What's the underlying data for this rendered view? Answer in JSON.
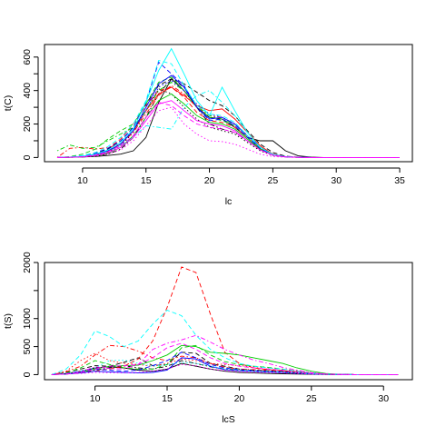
{
  "chart_data": [
    {
      "type": "line",
      "xlabel": "lc",
      "ylabel": "t(C)",
      "xlim": [
        7,
        36
      ],
      "ylim": [
        -25,
        675
      ],
      "xticks": [
        10,
        15,
        20,
        25,
        30,
        35
      ],
      "yticks": [
        0,
        200,
        400,
        600
      ],
      "yticks_minor": [
        100,
        300,
        500
      ],
      "grid": false,
      "legend": "none",
      "x": [
        8,
        9,
        10,
        11,
        12,
        13,
        14,
        15,
        16,
        17,
        18,
        19,
        20,
        21,
        22,
        23,
        24,
        25,
        26,
        27,
        28,
        29,
        30,
        31,
        32,
        33,
        34,
        35
      ],
      "series": [
        {
          "color": "#000000",
          "dash": "solid",
          "values": [
            0,
            1,
            3,
            6,
            12,
            20,
            40,
            120,
            330,
            470,
            400,
            300,
            240,
            230,
            180,
            120,
            100,
            100,
            40,
            10,
            2,
            0,
            0,
            0,
            0,
            0,
            0,
            0
          ]
        },
        {
          "color": "#000000",
          "dash": "dashed",
          "values": [
            0,
            2,
            8,
            22,
            50,
            100,
            180,
            320,
            430,
            470,
            440,
            390,
            340,
            310,
            250,
            160,
            80,
            30,
            8,
            2,
            0,
            0,
            0,
            0,
            0,
            0,
            0,
            0
          ]
        },
        {
          "color": "#000000",
          "dash": "dotted",
          "values": [
            0,
            1,
            4,
            12,
            30,
            70,
            150,
            280,
            410,
            380,
            300,
            230,
            180,
            160,
            140,
            90,
            40,
            12,
            3,
            1,
            0,
            0,
            0,
            0,
            0,
            0,
            0,
            0
          ]
        },
        {
          "color": "#000000",
          "dash": "dotdash",
          "values": [
            0,
            1,
            3,
            8,
            20,
            50,
            120,
            240,
            380,
            470,
            420,
            300,
            200,
            170,
            150,
            100,
            50,
            15,
            4,
            1,
            0,
            0,
            0,
            0,
            0,
            0,
            0,
            0
          ]
        },
        {
          "color": "#ff0000",
          "dash": "solid",
          "values": [
            0,
            2,
            6,
            15,
            35,
            80,
            160,
            280,
            380,
            420,
            370,
            310,
            280,
            290,
            230,
            150,
            70,
            20,
            5,
            1,
            0,
            0,
            0,
            0,
            0,
            0,
            0,
            0
          ]
        },
        {
          "color": "#ff0000",
          "dash": "dashed",
          "values": [
            0,
            3,
            10,
            25,
            55,
            110,
            200,
            310,
            400,
            420,
            360,
            270,
            220,
            210,
            180,
            120,
            55,
            18,
            5,
            1,
            0,
            0,
            0,
            0,
            0,
            0,
            0,
            0
          ]
        },
        {
          "color": "#ff0000",
          "dash": "dotdash",
          "values": [
            0,
            55,
            60,
            50,
            60,
            80,
            150,
            260,
            370,
            430,
            380,
            300,
            250,
            240,
            200,
            130,
            60,
            20,
            5,
            1,
            0,
            0,
            0,
            0,
            0,
            0,
            0,
            0
          ]
        },
        {
          "color": "#00cd00",
          "dash": "solid",
          "values": [
            0,
            1,
            4,
            10,
            25,
            60,
            130,
            240,
            340,
            380,
            320,
            250,
            210,
            200,
            170,
            110,
            50,
            15,
            4,
            1,
            0,
            0,
            0,
            0,
            0,
            0,
            0,
            0
          ]
        },
        {
          "color": "#00cd00",
          "dash": "dashed",
          "values": [
            0,
            5,
            20,
            50,
            110,
            160,
            200,
            320,
            450,
            480,
            400,
            300,
            240,
            220,
            190,
            120,
            50,
            15,
            4,
            1,
            0,
            0,
            0,
            0,
            0,
            0,
            0,
            0
          ]
        },
        {
          "color": "#00cd00",
          "dash": "dotdash",
          "values": [
            40,
            75,
            55,
            60,
            100,
            140,
            180,
            280,
            400,
            450,
            400,
            310,
            250,
            230,
            200,
            130,
            60,
            18,
            5,
            1,
            0,
            0,
            0,
            0,
            0,
            0,
            0,
            0
          ]
        },
        {
          "color": "#0000ff",
          "dash": "solid",
          "values": [
            0,
            2,
            6,
            18,
            40,
            80,
            160,
            300,
            440,
            490,
            420,
            300,
            230,
            240,
            200,
            130,
            60,
            18,
            5,
            1,
            0,
            0,
            0,
            0,
            0,
            0,
            0,
            0
          ]
        },
        {
          "color": "#0000ff",
          "dash": "dashed",
          "values": [
            0,
            3,
            10,
            25,
            55,
            100,
            180,
            330,
            570,
            500,
            430,
            300,
            220,
            230,
            190,
            120,
            55,
            16,
            4,
            1,
            0,
            0,
            0,
            0,
            0,
            0,
            0,
            0
          ]
        },
        {
          "color": "#0000ff",
          "dash": "dotted",
          "values": [
            0,
            2,
            8,
            20,
            45,
            90,
            160,
            280,
            420,
            460,
            400,
            320,
            260,
            240,
            200,
            130,
            60,
            18,
            5,
            1,
            0,
            0,
            0,
            0,
            0,
            0,
            0,
            0
          ]
        },
        {
          "color": "#00ffff",
          "dash": "solid",
          "values": [
            0,
            2,
            8,
            20,
            45,
            90,
            170,
            330,
            520,
            650,
            500,
            340,
            250,
            420,
            280,
            150,
            60,
            18,
            5,
            1,
            0,
            0,
            0,
            0,
            0,
            0,
            0,
            0
          ]
        },
        {
          "color": "#00ffff",
          "dash": "dashed",
          "values": [
            0,
            3,
            12,
            30,
            65,
            120,
            200,
            340,
            580,
            560,
            430,
            310,
            260,
            250,
            210,
            130,
            60,
            18,
            5,
            1,
            0,
            0,
            0,
            0,
            0,
            0,
            0,
            0
          ]
        },
        {
          "color": "#00ffff",
          "dash": "dotdash",
          "values": [
            0,
            2,
            6,
            15,
            35,
            70,
            120,
            190,
            180,
            170,
            300,
            370,
            400,
            330,
            250,
            150,
            60,
            18,
            5,
            1,
            0,
            0,
            0,
            0,
            0,
            0,
            0,
            0
          ]
        },
        {
          "color": "#ff00ff",
          "dash": "solid",
          "values": [
            0,
            1,
            4,
            12,
            28,
            60,
            120,
            220,
            320,
            340,
            280,
            220,
            200,
            190,
            160,
            100,
            45,
            14,
            4,
            1,
            0,
            0,
            0,
            0,
            0,
            0,
            0,
            0
          ]
        },
        {
          "color": "#ff00ff",
          "dash": "dashed",
          "values": [
            0,
            2,
            6,
            15,
            35,
            70,
            130,
            240,
            330,
            310,
            250,
            200,
            180,
            170,
            150,
            100,
            45,
            14,
            4,
            1,
            0,
            0,
            0,
            0,
            0,
            0,
            0,
            0
          ]
        },
        {
          "color": "#ff00ff",
          "dash": "dotted",
          "values": [
            0,
            1,
            3,
            8,
            20,
            45,
            100,
            190,
            280,
            300,
            200,
            140,
            100,
            95,
            80,
            50,
            20,
            6,
            2,
            0,
            0,
            0,
            0,
            0,
            0,
            0,
            0,
            0
          ]
        }
      ]
    },
    {
      "type": "line",
      "xlabel": "lcS",
      "ylabel": "t(S)",
      "xlim": [
        6.5,
        32
      ],
      "ylim": [
        -90,
        2000
      ],
      "xticks": [
        10,
        15,
        20,
        25,
        30
      ],
      "yticks": [
        0,
        500,
        1000,
        2000
      ],
      "yticks_minor": [
        1500
      ],
      "grid": false,
      "legend": "none",
      "x": [
        7,
        8,
        9,
        10,
        11,
        12,
        13,
        14,
        15,
        16,
        17,
        18,
        19,
        20,
        21,
        22,
        23,
        24,
        25,
        26,
        27,
        28,
        29,
        30,
        31
      ],
      "series": [
        {
          "color": "#000000",
          "dash": "solid",
          "values": [
            0,
            20,
            60,
            120,
            140,
            120,
            80,
            60,
            100,
            200,
            150,
            100,
            60,
            40,
            30,
            20,
            15,
            10,
            5,
            2,
            1,
            0,
            0,
            0,
            0
          ]
        },
        {
          "color": "#000000",
          "dash": "dashed",
          "values": [
            0,
            40,
            100,
            160,
            150,
            220,
            300,
            160,
            180,
            400,
            380,
            200,
            150,
            100,
            80,
            70,
            60,
            40,
            20,
            8,
            3,
            1,
            0,
            0,
            0
          ]
        },
        {
          "color": "#000000",
          "dash": "dotdash",
          "values": [
            0,
            20,
            50,
            80,
            120,
            160,
            120,
            100,
            150,
            250,
            200,
            140,
            100,
            80,
            60,
            50,
            40,
            25,
            12,
            5,
            2,
            0,
            0,
            0,
            0
          ]
        },
        {
          "color": "#ff0000",
          "dash": "dashed",
          "values": [
            0,
            10,
            30,
            60,
            100,
            150,
            280,
            600,
            1200,
            1920,
            1820,
            1080,
            400,
            200,
            120,
            90,
            70,
            50,
            25,
            10,
            3,
            1,
            0,
            0,
            0
          ]
        },
        {
          "color": "#ff0000",
          "dash": "dotdash",
          "values": [
            0,
            50,
            150,
            350,
            520,
            500,
            420,
            300,
            250,
            330,
            300,
            200,
            130,
            100,
            90,
            80,
            60,
            40,
            20,
            8,
            3,
            1,
            0,
            0,
            0
          ]
        },
        {
          "color": "#ff0000",
          "dash": "dotted",
          "values": [
            0,
            60,
            250,
            380,
            250,
            200,
            180,
            150,
            200,
            280,
            250,
            200,
            180,
            160,
            140,
            120,
            100,
            70,
            35,
            12,
            4,
            1,
            0,
            0,
            0
          ]
        },
        {
          "color": "#00cd00",
          "dash": "solid",
          "values": [
            0,
            10,
            40,
            100,
            150,
            160,
            170,
            250,
            350,
            520,
            500,
            400,
            380,
            350,
            300,
            250,
            200,
            120,
            60,
            20,
            5,
            1,
            0,
            0,
            0
          ]
        },
        {
          "color": "#00cd00",
          "dash": "dashed",
          "values": [
            0,
            30,
            120,
            250,
            180,
            120,
            100,
            100,
            180,
            480,
            520,
            350,
            230,
            180,
            150,
            130,
            100,
            60,
            30,
            10,
            3,
            1,
            0,
            0,
            0
          ]
        },
        {
          "color": "#0000ff",
          "dash": "solid",
          "values": [
            0,
            10,
            30,
            60,
            50,
            40,
            30,
            40,
            80,
            300,
            280,
            150,
            90,
            70,
            60,
            50,
            40,
            25,
            12,
            5,
            2,
            0,
            0,
            0,
            0
          ]
        },
        {
          "color": "#0000ff",
          "dash": "dashed",
          "values": [
            0,
            20,
            60,
            100,
            80,
            60,
            80,
            160,
            250,
            400,
            300,
            180,
            120,
            90,
            70,
            60,
            50,
            30,
            15,
            5,
            2,
            0,
            0,
            0,
            0
          ]
        },
        {
          "color": "#00ffff",
          "dash": "dashed",
          "values": [
            0,
            100,
            350,
            780,
            680,
            500,
            600,
            900,
            1150,
            1050,
            700,
            450,
            300,
            200,
            150,
            120,
            100,
            60,
            30,
            10,
            3,
            1,
            0,
            0,
            0
          ]
        },
        {
          "color": "#00ffff",
          "dash": "dotted",
          "values": [
            0,
            20,
            60,
            120,
            250,
            260,
            200,
            150,
            180,
            220,
            200,
            150,
            110,
            90,
            70,
            60,
            50,
            30,
            15,
            5,
            2,
            0,
            0,
            0,
            0
          ]
        },
        {
          "color": "#ff00ff",
          "dash": "dashed",
          "values": [
            0,
            10,
            40,
            100,
            150,
            160,
            180,
            300,
            480,
            560,
            450,
            300,
            200,
            150,
            120,
            100,
            80,
            50,
            25,
            10,
            3,
            1,
            0,
            0,
            0
          ]
        },
        {
          "color": "#ff00ff",
          "dash": "dotdash",
          "values": [
            0,
            15,
            50,
            140,
            110,
            100,
            180,
            450,
            560,
            620,
            700,
            580,
            450,
            350,
            260,
            200,
            130,
            80,
            35,
            12,
            4,
            1,
            0,
            0,
            0
          ]
        },
        {
          "color": "#ff00ff",
          "dash": "dotted",
          "values": [
            0,
            10,
            20,
            40,
            35,
            30,
            40,
            60,
            100,
            180,
            160,
            100,
            70,
            50,
            40,
            35,
            30,
            20,
            10,
            4,
            1,
            0,
            0,
            0,
            0
          ]
        }
      ]
    }
  ]
}
